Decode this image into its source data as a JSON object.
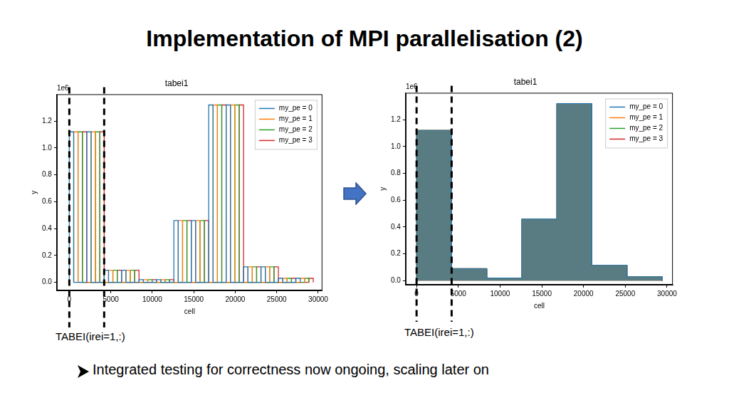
{
  "title": "Implementation of MPI parallelisation (2)",
  "bullet": "Integrated testing for correctness now ongoing, scaling later on",
  "chart_data": [
    {
      "type": "line",
      "title": "tabei1",
      "x_label": "cell",
      "y_label": "y",
      "annotations": [
        "1e6"
      ],
      "caption": "TABEI(irei=1,:)",
      "vlines": [
        0,
        4200
      ],
      "xlim": [
        -1500,
        30500
      ],
      "xticks": [
        0,
        5000,
        10000,
        15000,
        20000,
        25000,
        30000
      ],
      "ylim": [
        -0.06,
        1.4
      ],
      "yticks": [
        {
          "value": 0,
          "label": "0.0"
        },
        0.2,
        0.4,
        0.6,
        0.8,
        {
          "value": 1,
          "label": "1.0"
        },
        1.2
      ],
      "grid": false,
      "legend": "upper right",
      "series": [
        {
          "name": "my_pe = 0",
          "color": "#1f77b4",
          "x": [
            0,
            0,
            525,
            525,
            2100,
            2100,
            2625,
            2625,
            4200,
            4200,
            4725,
            4725,
            6300,
            6300,
            6825,
            6825,
            8400,
            8400,
            8925,
            8925,
            10500,
            10500,
            11025,
            11025,
            12600,
            12600,
            13125,
            13125,
            14700,
            14700,
            15225,
            15225,
            16800,
            16800,
            17325,
            17325,
            18900,
            18900,
            19425,
            19425,
            21000,
            21000,
            21525,
            21525,
            23100,
            23100,
            23625,
            23625,
            25200,
            25200,
            25725,
            25725,
            27300,
            27300,
            27825,
            27825
          ],
          "values": [
            0,
            1.12,
            1.12,
            0,
            0,
            1.12,
            1.12,
            0,
            0,
            0.09,
            0.09,
            0,
            0,
            0.09,
            0.09,
            0,
            0,
            0.02,
            0.02,
            0,
            0,
            0.02,
            0.02,
            0,
            0,
            0.46,
            0.46,
            0,
            0,
            0.46,
            0.46,
            0,
            0,
            1.32,
            1.32,
            0,
            0,
            1.32,
            1.32,
            0,
            0,
            0.115,
            0.115,
            0,
            0,
            0.115,
            0.115,
            0,
            0,
            0.03,
            0.03,
            0,
            0,
            0.03,
            0.03,
            0
          ]
        },
        {
          "name": "my_pe = 1",
          "color": "#ff7f0e",
          "x": [
            525,
            525,
            1050,
            1050,
            2625,
            2625,
            3150,
            3150,
            4725,
            4725,
            5250,
            5250,
            6825,
            6825,
            7350,
            7350,
            8925,
            8925,
            9450,
            9450,
            11025,
            11025,
            11550,
            11550,
            13125,
            13125,
            13650,
            13650,
            15225,
            15225,
            15750,
            15750,
            17325,
            17325,
            17850,
            17850,
            19425,
            19425,
            19950,
            19950,
            21525,
            21525,
            22050,
            22050,
            23625,
            23625,
            24150,
            24150,
            25725,
            25725,
            26250,
            26250,
            27825,
            27825,
            28350,
            28350
          ],
          "values": [
            0,
            1.12,
            1.12,
            0,
            0,
            1.12,
            1.12,
            0,
            0,
            0.09,
            0.09,
            0,
            0,
            0.09,
            0.09,
            0,
            0,
            0.02,
            0.02,
            0,
            0,
            0.02,
            0.02,
            0,
            0,
            0.46,
            0.46,
            0,
            0,
            0.46,
            0.46,
            0,
            0,
            1.32,
            1.32,
            0,
            0,
            1.32,
            1.32,
            0,
            0,
            0.115,
            0.115,
            0,
            0,
            0.115,
            0.115,
            0,
            0,
            0.03,
            0.03,
            0,
            0,
            0.03,
            0.03,
            0
          ]
        },
        {
          "name": "my_pe = 2",
          "color": "#2ca02c",
          "x": [
            1050,
            1050,
            1575,
            1575,
            3150,
            3150,
            3675,
            3675,
            5250,
            5250,
            5775,
            5775,
            7350,
            7350,
            7875,
            7875,
            9450,
            9450,
            9975,
            9975,
            11550,
            11550,
            12075,
            12075,
            13650,
            13650,
            14175,
            14175,
            15750,
            15750,
            16275,
            16275,
            17850,
            17850,
            18375,
            18375,
            19950,
            19950,
            20475,
            20475,
            22050,
            22050,
            22575,
            22575,
            24150,
            24150,
            24675,
            24675,
            26250,
            26250,
            26775,
            26775,
            28350,
            28350,
            28875,
            28875
          ],
          "values": [
            0,
            1.12,
            1.12,
            0,
            0,
            1.12,
            1.12,
            0,
            0,
            0.09,
            0.09,
            0,
            0,
            0.09,
            0.09,
            0,
            0,
            0.02,
            0.02,
            0,
            0,
            0.02,
            0.02,
            0,
            0,
            0.46,
            0.46,
            0,
            0,
            0.46,
            0.46,
            0,
            0,
            1.32,
            1.32,
            0,
            0,
            1.32,
            1.32,
            0,
            0,
            0.115,
            0.115,
            0,
            0,
            0.115,
            0.115,
            0,
            0,
            0.03,
            0.03,
            0,
            0,
            0.03,
            0.03,
            0
          ]
        },
        {
          "name": "my_pe = 3",
          "color": "#d62728",
          "x": [
            1575,
            1575,
            2100,
            2100,
            3675,
            3675,
            4200,
            4200,
            5775,
            5775,
            6300,
            6300,
            7875,
            7875,
            8400,
            8400,
            9975,
            9975,
            10500,
            10500,
            12075,
            12075,
            12600,
            12600,
            14175,
            14175,
            14700,
            14700,
            16275,
            16275,
            16800,
            16800,
            18375,
            18375,
            18900,
            18900,
            20475,
            20475,
            21000,
            21000,
            22575,
            22575,
            23100,
            23100,
            24675,
            24675,
            25200,
            25200,
            26775,
            26775,
            27300,
            27300,
            28875,
            28875,
            29400,
            29400
          ],
          "values": [
            0,
            1.12,
            1.12,
            0,
            0,
            1.12,
            1.12,
            0,
            0,
            0.09,
            0.09,
            0,
            0,
            0.09,
            0.09,
            0,
            0,
            0.02,
            0.02,
            0,
            0,
            0.02,
            0.02,
            0,
            0,
            0.46,
            0.46,
            0,
            0,
            0.46,
            0.46,
            0,
            0,
            1.32,
            1.32,
            0,
            0,
            1.32,
            1.32,
            0,
            0,
            0.115,
            0.115,
            0,
            0,
            0.115,
            0.115,
            0,
            0,
            0.03,
            0.03,
            0,
            0,
            0.03,
            0.03,
            0
          ]
        }
      ]
    },
    {
      "type": "line",
      "title": "tabei1",
      "x_label": "cell",
      "y_label": "y",
      "annotations": [
        "1e6"
      ],
      "caption": "TABEI(irei=1,:)",
      "vlines": [
        0,
        4200
      ],
      "xlim": [
        -1300,
        30700
      ],
      "xticks": [
        0,
        5000,
        10000,
        15000,
        20000,
        25000,
        30000
      ],
      "ylim": [
        -0.03,
        1.4
      ],
      "yticks": [
        {
          "value": 0,
          "label": "0.0"
        },
        0.2,
        0.4,
        0.6,
        0.8,
        {
          "value": 1,
          "label": "1.0"
        },
        1.2
      ],
      "grid": false,
      "legend": "upper right",
      "series": [
        {
          "name": "my_pe = 0",
          "color": "#1f77b4",
          "x": [
            0,
            0,
            4200,
            4200,
            8400,
            8400,
            12600,
            12600,
            16800,
            16800,
            21000,
            21000,
            25200,
            25200,
            29400,
            29400
          ],
          "values": [
            0,
            1.12,
            1.12,
            0.09,
            0.09,
            0.02,
            0.02,
            0.46,
            0.46,
            1.32,
            1.32,
            0.115,
            0.115,
            0.03,
            0.03,
            0
          ]
        },
        {
          "name": "my_pe = 1",
          "color": "#ff7f0e",
          "x": [
            0,
            0,
            4200,
            4200,
            8400,
            8400,
            12600,
            12600,
            16800,
            16800,
            21000,
            21000,
            25200,
            25200,
            29400,
            29400
          ],
          "values": [
            0,
            1.12,
            1.12,
            0.09,
            0.09,
            0.02,
            0.02,
            0.46,
            0.46,
            1.32,
            1.32,
            0.115,
            0.115,
            0.03,
            0.03,
            0
          ]
        },
        {
          "name": "my_pe = 2",
          "color": "#2ca02c",
          "x": [
            0,
            0,
            4200,
            4200,
            8400,
            8400,
            12600,
            12600,
            16800,
            16800,
            21000,
            21000,
            25200,
            25200,
            29400,
            29400
          ],
          "values": [
            0,
            1.12,
            1.12,
            0.09,
            0.09,
            0.02,
            0.02,
            0.46,
            0.46,
            1.32,
            1.32,
            0.115,
            0.115,
            0.03,
            0.03,
            0
          ]
        },
        {
          "name": "my_pe = 3",
          "color": "#d62728",
          "x": [
            0,
            0,
            4200,
            4200,
            8400,
            8400,
            12600,
            12600,
            16800,
            16800,
            21000,
            21000,
            25200,
            25200,
            29400,
            29400
          ],
          "values": [
            0,
            1.12,
            1.12,
            0.09,
            0.09,
            0.02,
            0.02,
            0.46,
            0.46,
            1.32,
            1.32,
            0.115,
            0.115,
            0.03,
            0.03,
            0
          ]
        }
      ]
    }
  ]
}
